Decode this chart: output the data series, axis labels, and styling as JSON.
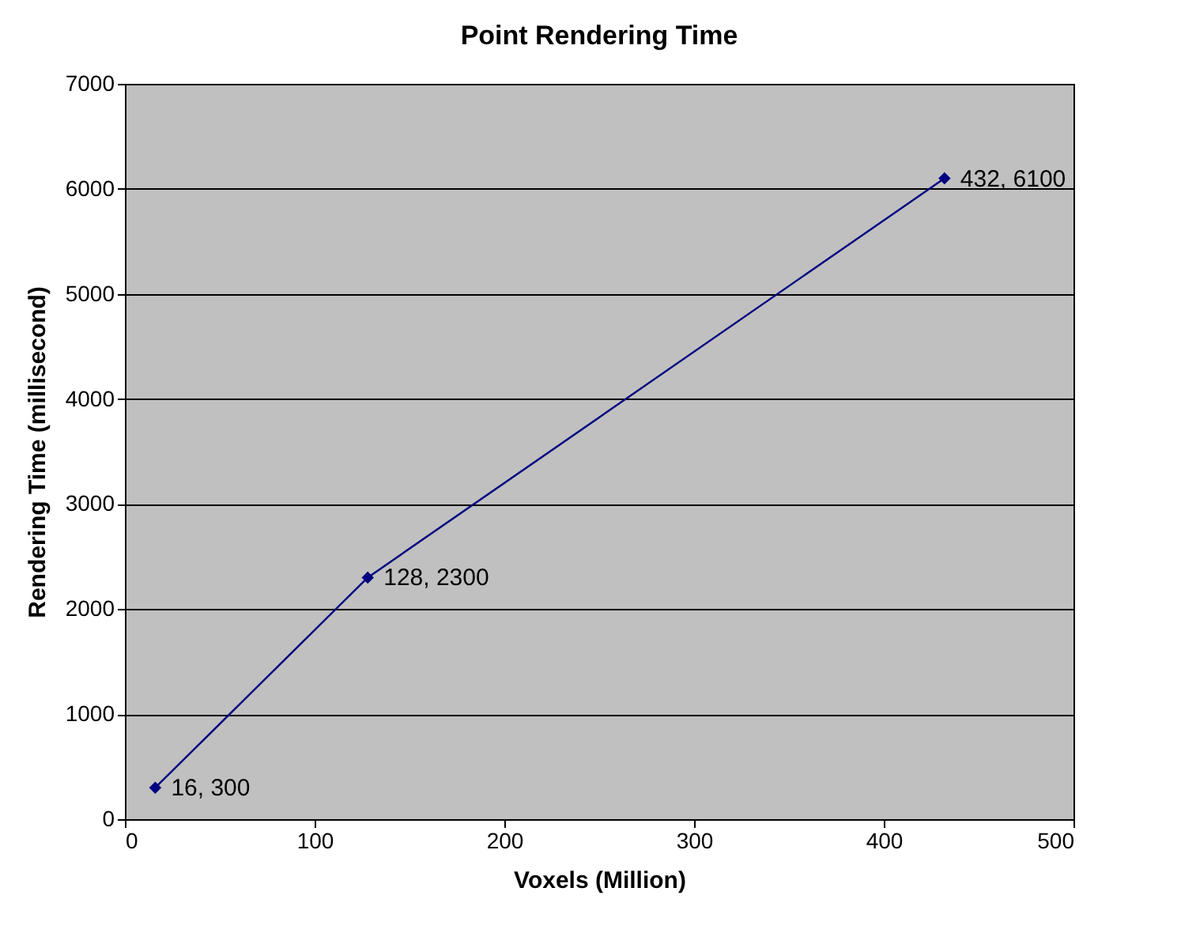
{
  "chart_data": {
    "type": "line",
    "title": "Point Rendering Time",
    "xlabel": "Voxels (Million)",
    "ylabel": "Rendering Time (millisecond)",
    "x": [
      16,
      128,
      432
    ],
    "series": [
      {
        "color": "#000080",
        "values": [
          300,
          2300,
          6100
        ],
        "value_labels": [
          "16, 300",
          "128, 2300",
          "432, 6100"
        ]
      }
    ],
    "xlim": [
      0,
      500
    ],
    "xticks": [
      0,
      100,
      200,
      300,
      400,
      500
    ],
    "ylim": [
      0,
      7000
    ],
    "yticks": [
      0,
      1000,
      2000,
      3000,
      4000,
      5000,
      6000,
      7000
    ],
    "grid": "y",
    "marker": "diamond",
    "line_style": "solid"
  }
}
